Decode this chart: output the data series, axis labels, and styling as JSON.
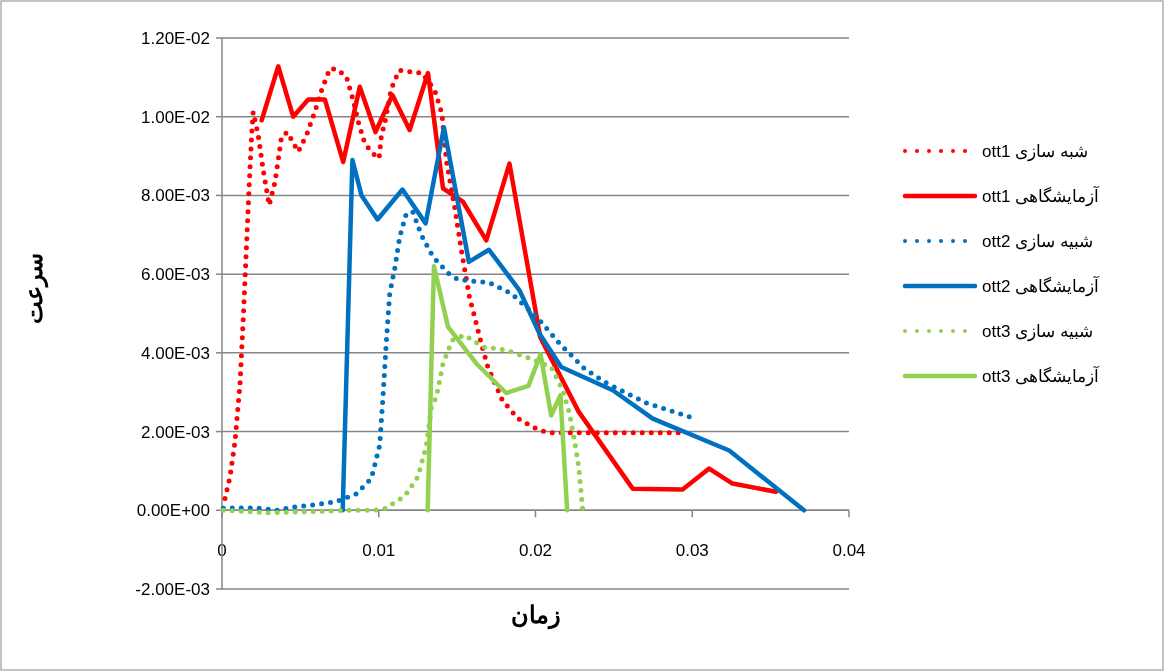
{
  "chart_data": {
    "type": "line",
    "xlabel": "زمان",
    "ylabel": "سرعت",
    "xlim": [
      0,
      0.04
    ],
    "xticks": [
      0,
      0.01,
      0.02,
      0.03,
      0.04
    ],
    "ylim": [
      -0.002,
      0.012
    ],
    "yticks": [
      {
        "value": -0.002,
        "label": "-2.00E-03"
      },
      {
        "value": 0,
        "label": "0.00E+00"
      },
      {
        "value": 0.002,
        "label": "2.00E-03"
      },
      {
        "value": 0.004,
        "label": "4.00E-03"
      },
      {
        "value": 0.006,
        "label": "6.00E-03"
      },
      {
        "value": 0.008,
        "label": "8.00E-03"
      },
      {
        "value": 0.01,
        "label": "1.00E-02"
      },
      {
        "value": 0.012,
        "label": "1.20E-02"
      }
    ],
    "grid": "y",
    "legend": "right",
    "series": [
      {
        "name": "شبه سازی ott1",
        "color": "#ff0000",
        "line_style": "dotted",
        "x": [
          0.00019,
          0.00051,
          0.00083,
          0.00115,
          0.00136,
          0.00157,
          0.00174,
          0.00189,
          0.00199,
          0.00231,
          0.00263,
          0.00301,
          0.00338,
          0.0038,
          0.00416,
          0.00486,
          0.00539,
          0.00592,
          0.00635,
          0.00688,
          0.00735,
          0.00794,
          0.00837,
          0.00869,
          0.00911,
          0.00964,
          0.01002,
          0.01017,
          0.01038,
          0.01081,
          0.0113,
          0.01202,
          0.01276,
          0.01357,
          0.01403,
          0.01431,
          0.01484,
          0.01527,
          0.0158,
          0.01601,
          0.01654,
          0.01696,
          0.01788,
          0.01888,
          0.02015,
          0.02089,
          0.0293
        ],
        "values": [
          0.0003,
          0.00085,
          0.00174,
          0.00322,
          0.00491,
          0.00678,
          0.0083,
          0.00953,
          0.01012,
          0.00953,
          0.00864,
          0.00775,
          0.00834,
          0.00949,
          0.00961,
          0.00911,
          0.00953,
          0.01012,
          0.01067,
          0.01122,
          0.0112,
          0.01101,
          0.01042,
          0.00987,
          0.00932,
          0.00906,
          0.00894,
          0.00953,
          0.00983,
          0.01072,
          0.01118,
          0.01114,
          0.01111,
          0.01067,
          0.01008,
          0.00889,
          0.00771,
          0.00661,
          0.00538,
          0.00508,
          0.00424,
          0.00364,
          0.0028,
          0.00233,
          0.00205,
          0.00197,
          0.00197
        ]
      },
      {
        "name": "آزمایشگاهی ott1",
        "color": "#ff0000",
        "line_style": "solid",
        "x": [
          0.00253,
          0.00359,
          0.00454,
          0.0055,
          0.00656,
          0.00773,
          0.00879,
          0.00979,
          0.01087,
          0.01197,
          0.01314,
          0.0141,
          0.01537,
          0.01686,
          0.01834,
          0.0203,
          0.02276,
          0.0262,
          0.02938,
          0.03108,
          0.03257,
          0.03533
        ],
        "values": [
          0.00991,
          0.01128,
          0.01,
          0.01044,
          0.01044,
          0.00885,
          0.01076,
          0.00961,
          0.01055,
          0.00966,
          0.01111,
          0.00818,
          0.00784,
          0.00686,
          0.00881,
          0.0044,
          0.0025,
          0.00055,
          0.00053,
          0.00106,
          0.00068,
          0.00047
        ]
      },
      {
        "name": "شبیه سازی ott2",
        "color": "#0070c0",
        "line_style": "dotted",
        "x": [
          8e-05,
          0.00072,
          0.00221,
          0.00359,
          0.00433,
          0.00571,
          0.0072,
          0.00858,
          0.00953,
          0.01006,
          0.01027,
          0.01049,
          0.0107,
          0.01102,
          0.01134,
          0.01176,
          0.01218,
          0.01272,
          0.01346,
          0.01442,
          0.01506,
          0.01707,
          0.01845,
          0.02004,
          0.02153,
          0.02312,
          0.0244,
          0.02705,
          0.02992
        ],
        "values": [
          5e-05,
          6e-05,
          6e-05,
          0,
          7e-05,
          0.00013,
          0.00021,
          0.00042,
          0.00081,
          0.00165,
          0.00288,
          0.00432,
          0.00551,
          0.00614,
          0.00695,
          0.00754,
          0.00758,
          0.00699,
          0.00644,
          0.00603,
          0.00586,
          0.00578,
          0.00551,
          0.00493,
          0.00424,
          0.0036,
          0.00326,
          0.00273,
          0.00236
        ]
      },
      {
        "name": "آزمایشگاهی ott2",
        "color": "#0070c0",
        "line_style": "solid",
        "x": [
          0.0077,
          0.00832,
          0.0089,
          0.00992,
          0.01151,
          0.01299,
          0.01416,
          0.01575,
          0.01703,
          0.01898,
          0.02025,
          0.02164,
          0.02493,
          0.02748,
          0.03236,
          0.03713
        ],
        "values": [
          0,
          0.0089,
          0.008,
          0.00739,
          0.00815,
          0.00729,
          0.00973,
          0.00631,
          0.00662,
          0.00559,
          0.00449,
          0.00364,
          0.00305,
          0.00233,
          0.00152,
          0
        ]
      },
      {
        "name": "شبیه سازی ott3",
        "color": "#92d050",
        "line_style": "dotted",
        "x": [
          8e-05,
          0.00295,
          0.00518,
          0.00815,
          0.00964,
          0.01038,
          0.01166,
          0.0125,
          0.01304,
          0.01336,
          0.01368,
          0.0141,
          0.01469,
          0.01548,
          0.01665,
          0.01813,
          0.01962,
          0.021,
          0.02174,
          0.02217,
          0.02248,
          0.02276,
          0.02301
        ],
        "values": [
          0,
          -6e-05,
          -4e-05,
          0,
          0,
          4e-05,
          0.00036,
          0.00085,
          0.00165,
          0.00263,
          0.00288,
          0.00373,
          0.00432,
          0.00445,
          0.00415,
          0.00407,
          0.00386,
          0.00364,
          0.00305,
          0.00246,
          0.00178,
          0.0011,
          0
        ]
      },
      {
        "name": "آزمایشگاهی ott3",
        "color": "#92d050",
        "line_style": "solid",
        "x": [
          0.01312,
          0.01352,
          0.01442,
          0.01622,
          0.01813,
          0.01955,
          0.02032,
          0.021,
          0.02159,
          0.02202
        ],
        "values": [
          0,
          0.0062,
          0.00466,
          0.00373,
          0.00298,
          0.00316,
          0.00396,
          0.00241,
          0.00292,
          0
        ]
      }
    ]
  }
}
